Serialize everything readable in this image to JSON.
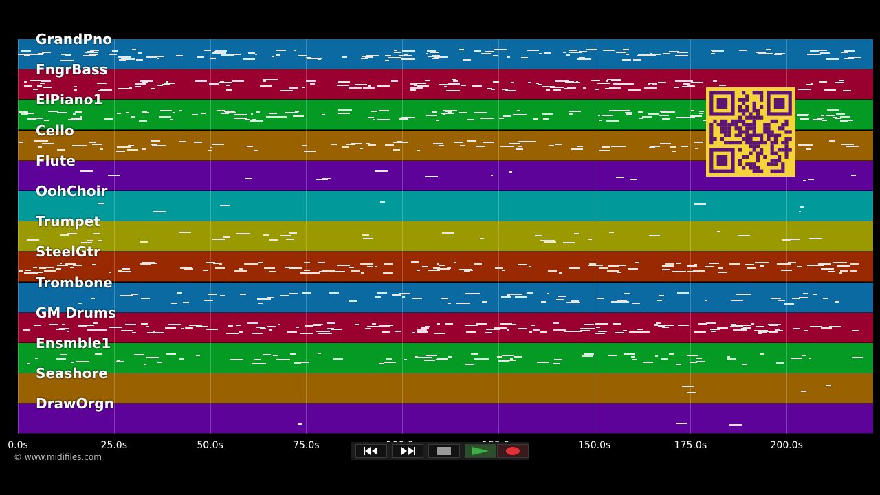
{
  "tracks": [
    {
      "name": "GrandPno",
      "color": "#0a6aa1"
    },
    {
      "name": "FngrBass",
      "color": "#99002f"
    },
    {
      "name": "ElPiano1",
      "color": "#059a24"
    },
    {
      "name": "Cello",
      "color": "#996100"
    },
    {
      "name": "Flute",
      "color": "#5e0399"
    },
    {
      "name": "OohChoir",
      "color": "#009a9a"
    },
    {
      "name": "Trumpet",
      "color": "#9a9a00"
    },
    {
      "name": "SteelGtr",
      "color": "#992900"
    },
    {
      "name": "Trombone",
      "color": "#0a6aa1"
    },
    {
      "name": "GM Drums",
      "color": "#99002f"
    },
    {
      "name": "Ensmble1",
      "color": "#059a24"
    },
    {
      "name": "Seashore",
      "color": "#996100"
    },
    {
      "name": "DrawOrgn",
      "color": "#5e0399"
    }
  ],
  "timeline": {
    "ticks": [
      "0.0s",
      "25.0s",
      "50.0s",
      "75.0s",
      "100.0s",
      "125.0s",
      "150.0s",
      "175.0s",
      "200.0s"
    ],
    "tick_values": [
      0,
      25,
      50,
      75,
      100,
      125,
      150,
      175,
      200
    ],
    "range_seconds": [
      0,
      222.5
    ]
  },
  "copyright": "© www.midifiles.com",
  "transport": {
    "rewind_icon": "rewind-icon",
    "forward_icon": "fast-forward-icon",
    "stop_icon": "stop-icon",
    "play_icon": "play-icon",
    "record_icon": "record-icon",
    "play_color": "#3cb043",
    "record_color": "#e0303a"
  },
  "qr_code": {
    "color": "#f5d33a",
    "module_color": "#5a1670"
  }
}
